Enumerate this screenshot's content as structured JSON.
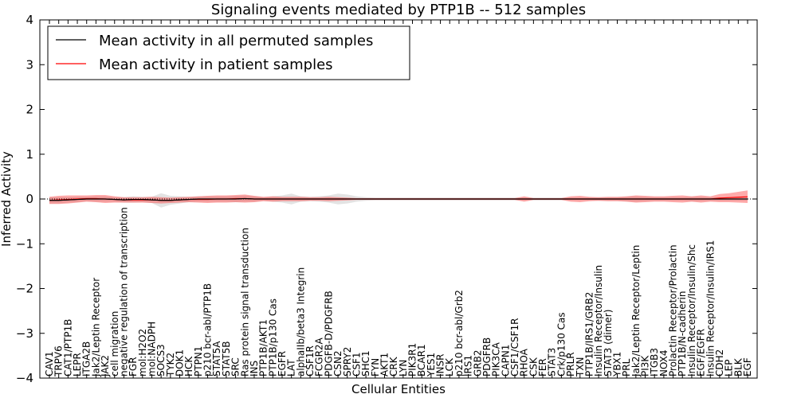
{
  "chart_data": {
    "type": "line",
    "title": "Signaling events mediated by PTP1B -- 512 samples",
    "xlabel": "Cellular Entities",
    "ylabel": "Inferred Activity",
    "ylim": [
      -4,
      4
    ],
    "yticks": [
      "−4",
      "−3",
      "−2",
      "−1",
      "0",
      "1",
      "2",
      "3",
      "4"
    ],
    "legend": {
      "position": "top-left",
      "entries": [
        {
          "label": "Mean activity in all permuted samples",
          "color": "#000000"
        },
        {
          "label": "Mean activity in patient samples",
          "color": "#ff0000"
        }
      ]
    },
    "categories": [
      "CAV1",
      "TRPV6",
      "CAT1/PTP1B",
      "LEPR",
      "ITGA2B",
      "Jak2/Leptin Receptor",
      "JAK2",
      "cell migration",
      "negative regulation of transcription",
      "FGR",
      "mol:H2O2",
      "mol:NADPH",
      "SOCS3",
      "TYK2",
      "DOK1",
      "HCK",
      "PTPN1",
      "p210 bcr-abl/PTP1B",
      "STAT5A",
      "STAT5B",
      "SRC",
      "Ras protein signal transduction",
      "INS",
      "PTP1B/AKT1",
      "PTP1B/p130 Cas",
      "EGFR",
      "LAT",
      "alphaIIb/beta3 Integrin",
      "CSF1R",
      "FCGR2A",
      "PDGFB-D/PDGFRB",
      "CSN2",
      "SPRY2",
      "CSF1",
      "SHC1",
      "FYN",
      "AKT1",
      "CRK",
      "LYN",
      "PIK3R1",
      "BCAR1",
      "YES1",
      "INSR",
      "LCK",
      "p210 bcr-abl/Grb2",
      "IRS1",
      "GRB2",
      "PDGFRB",
      "PIK3CA",
      "CAPN1",
      "CSF1/CSF1R",
      "RHOA",
      "CSK",
      "FER",
      "STAT3",
      "Crk/p130 Cas",
      "PRLR",
      "TXN",
      "PTP1B/IRS1/GRB2",
      "Insulin Receptor/Insulin",
      "STAT3 (dimer)",
      "YBX1",
      "PRL",
      "Jak2/Leptin Receptor/Leptin",
      "PI3K",
      "ITGB3",
      "NOX4",
      "Prolactin Receptor/Prolactin",
      "PTP1B/N-cadherin",
      "Insulin Receptor/Insulin/Shc",
      "EGF/EGFR",
      "Insulin Receptor/Insulin/IRS1",
      "CDH2",
      "LEP",
      "BLK",
      "EGF"
    ],
    "series": [
      {
        "name": "Mean activity in all permuted samples",
        "color": "#000000",
        "values": [
          -0.03,
          -0.03,
          -0.02,
          -0.01,
          0.0,
          0.0,
          0.0,
          -0.01,
          -0.02,
          -0.01,
          -0.01,
          -0.02,
          -0.03,
          -0.03,
          -0.02,
          -0.01,
          0.0,
          0.0,
          0.0,
          0.0,
          0.0,
          0.01,
          0.0,
          0.0,
          0.0,
          0.0,
          0.0,
          0.0,
          0.0,
          0.0,
          0.0,
          0.0,
          0.0,
          0.0,
          0.0,
          0.0,
          0.0,
          0.0,
          0.0,
          0.0,
          0.0,
          0.0,
          0.0,
          0.0,
          0.0,
          0.0,
          0.0,
          0.0,
          0.0,
          0.0,
          0.0,
          0.0,
          0.0,
          0.0,
          0.0,
          0.0,
          0.0,
          0.0,
          0.0,
          0.0,
          0.0,
          0.0,
          0.0,
          0.0,
          0.0,
          0.0,
          0.0,
          0.0,
          0.0,
          0.0,
          0.0,
          0.0,
          0.0,
          0.0,
          0.0,
          0.0
        ],
        "band": [
          0.07,
          0.07,
          0.06,
          0.06,
          0.05,
          0.06,
          0.06,
          0.05,
          0.06,
          0.07,
          0.06,
          0.07,
          0.16,
          0.1,
          0.08,
          0.06,
          0.06,
          0.06,
          0.06,
          0.06,
          0.07,
          0.07,
          0.06,
          0.04,
          0.06,
          0.08,
          0.12,
          0.06,
          0.05,
          0.06,
          0.08,
          0.12,
          0.1,
          0.06,
          0.04,
          0.03,
          0.03,
          0.03,
          0.03,
          0.03,
          0.03,
          0.03,
          0.03,
          0.03,
          0.03,
          0.03,
          0.03,
          0.03,
          0.03,
          0.03,
          0.03,
          0.03,
          0.03,
          0.03,
          0.03,
          0.03,
          0.03,
          0.03,
          0.03,
          0.04,
          0.04,
          0.04,
          0.05,
          0.06,
          0.05,
          0.04,
          0.04,
          0.04,
          0.04,
          0.05,
          0.05,
          0.04,
          0.04,
          0.04,
          0.04,
          0.04
        ]
      },
      {
        "name": "Mean activity in patient samples",
        "color": "#ff0000",
        "values": [
          -0.03,
          -0.02,
          -0.01,
          0.0,
          0.01,
          0.01,
          0.0,
          -0.01,
          -0.02,
          -0.02,
          -0.02,
          -0.02,
          -0.03,
          -0.03,
          -0.02,
          -0.01,
          -0.01,
          -0.01,
          0.0,
          0.0,
          0.01,
          0.01,
          0.0,
          0.0,
          0.0,
          0.0,
          0.0,
          0.0,
          0.0,
          0.0,
          0.0,
          0.0,
          0.0,
          0.0,
          0.0,
          0.0,
          0.0,
          0.0,
          0.0,
          0.0,
          0.0,
          0.0,
          0.0,
          0.0,
          0.0,
          0.0,
          0.0,
          0.0,
          0.0,
          0.0,
          0.0,
          0.0,
          0.0,
          0.0,
          0.0,
          0.0,
          0.0,
          0.0,
          0.0,
          0.0,
          0.0,
          0.0,
          0.0,
          0.0,
          0.0,
          0.0,
          0.0,
          0.0,
          0.0,
          0.0,
          0.0,
          0.0,
          0.02,
          0.03,
          0.04,
          0.05
        ],
        "band": [
          0.08,
          0.09,
          0.09,
          0.08,
          0.07,
          0.08,
          0.09,
          0.07,
          0.06,
          0.06,
          0.06,
          0.07,
          0.07,
          0.06,
          0.06,
          0.06,
          0.07,
          0.08,
          0.08,
          0.08,
          0.08,
          0.09,
          0.07,
          0.05,
          0.06,
          0.05,
          0.05,
          0.05,
          0.04,
          0.04,
          0.05,
          0.04,
          0.03,
          0.02,
          0.02,
          0.02,
          0.02,
          0.02,
          0.02,
          0.02,
          0.02,
          0.02,
          0.02,
          0.02,
          0.02,
          0.02,
          0.02,
          0.02,
          0.02,
          0.02,
          0.02,
          0.06,
          0.02,
          0.02,
          0.02,
          0.02,
          0.06,
          0.07,
          0.05,
          0.04,
          0.05,
          0.05,
          0.06,
          0.08,
          0.07,
          0.06,
          0.06,
          0.07,
          0.08,
          0.06,
          0.08,
          0.06,
          0.09,
          0.1,
          0.12,
          0.14
        ]
      }
    ]
  }
}
